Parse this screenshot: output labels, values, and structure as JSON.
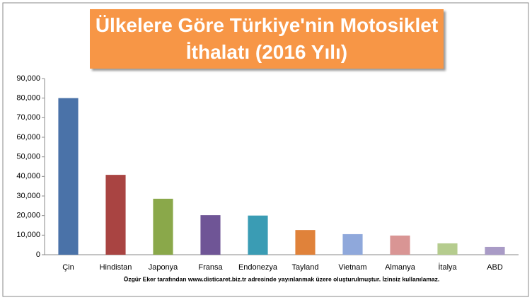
{
  "chart_data": {
    "type": "bar",
    "title": "Ülkelere Göre Türkiye'nin Motosiklet İthalatı (2016 Yılı)",
    "note": "Özgür Eker tarafından www.disticaret.biz.tr adresinde yayınlanmak üzere oluşturulmuştur. İzinsiz kullanılamaz.",
    "categories": [
      "Çin",
      "Hindistan",
      "Japonya",
      "Fransa",
      "Endonezya",
      "Tayland",
      "Vietnam",
      "Almanya",
      "İtalya",
      "ABD"
    ],
    "values": [
      80000,
      40800,
      28600,
      20200,
      20000,
      12600,
      10500,
      9800,
      5800,
      4000
    ],
    "colors": [
      "#4a72a8",
      "#a94442",
      "#8aa84a",
      "#6f5596",
      "#3a9cb4",
      "#e0823a",
      "#8fa8db",
      "#d99594",
      "#b5cc8e",
      "#a99bc6"
    ],
    "ylim": [
      0,
      90000
    ],
    "yticks": [
      0,
      {
        "value": 10000,
        "label": "10,000"
      },
      {
        "value": 20000,
        "label": "20,000"
      },
      {
        "value": 30000,
        "label": "30,000"
      },
      {
        "value": 40000,
        "label": "40,000"
      },
      {
        "value": 50000,
        "label": "50,000"
      },
      {
        "value": 60000,
        "label": "60,000"
      },
      {
        "value": 70000,
        "label": "70,000"
      },
      {
        "value": 80000,
        "label": "80,000"
      },
      {
        "value": 90000,
        "label": "90,000"
      }
    ],
    "grid": false
  }
}
